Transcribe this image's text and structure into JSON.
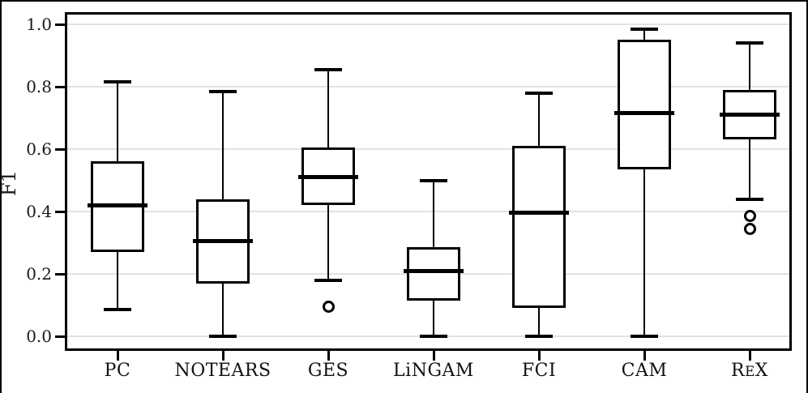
{
  "figure": {
    "ylabel": "F1",
    "ytick_labels": [
      "1.0",
      "0.8",
      "0.6",
      "0.4",
      "0.2",
      "0.0"
    ]
  },
  "chart_data": {
    "type": "boxplot",
    "title": "",
    "xlabel": "",
    "ylabel": "F1",
    "ylim": [
      -0.05,
      1.04
    ],
    "yticks": [
      1.0,
      0.8,
      0.6,
      0.4,
      0.2,
      0.0
    ],
    "grid": "horizontal-only",
    "legend": "none",
    "categories": [
      "PC",
      "NOTEARS",
      "GES",
      "LiNGAM",
      "FCI",
      "CAM",
      "ReX"
    ],
    "series": [
      {
        "name": "PC",
        "smallcaps": false,
        "whisker_low": 0.085,
        "q1": 0.27,
        "median": 0.42,
        "q3": 0.56,
        "whisker_high": 0.815,
        "outliers": []
      },
      {
        "name": "NOTEARS",
        "smallcaps": false,
        "whisker_low": 0.0,
        "q1": 0.17,
        "median": 0.305,
        "q3": 0.44,
        "whisker_high": 0.785,
        "outliers": []
      },
      {
        "name": "GES",
        "smallcaps": false,
        "whisker_low": 0.18,
        "q1": 0.42,
        "median": 0.51,
        "q3": 0.605,
        "whisker_high": 0.855,
        "outliers": [
          0.095
        ]
      },
      {
        "name": "LiNGAM",
        "smallcaps": false,
        "whisker_low": 0.0,
        "q1": 0.115,
        "median": 0.21,
        "q3": 0.285,
        "whisker_high": 0.5,
        "outliers": []
      },
      {
        "name": "FCI",
        "smallcaps": false,
        "whisker_low": 0.0,
        "q1": 0.09,
        "median": 0.395,
        "q3": 0.61,
        "whisker_high": 0.78,
        "outliers": []
      },
      {
        "name": "CAM",
        "smallcaps": false,
        "whisker_low": 0.0,
        "q1": 0.535,
        "median": 0.715,
        "q3": 0.95,
        "whisker_high": 0.985,
        "outliers": []
      },
      {
        "name": "ReX",
        "smallcaps": true,
        "whisker_low": 0.44,
        "q1": 0.63,
        "median": 0.71,
        "q3": 0.79,
        "whisker_high": 0.94,
        "outliers": [
          0.385,
          0.345
        ]
      }
    ],
    "colors": {
      "box_stroke": "#000000",
      "box_fill": "#ffffff",
      "median": "#000000",
      "gridline": "#e2e2e2",
      "background": "#ffffff"
    }
  }
}
